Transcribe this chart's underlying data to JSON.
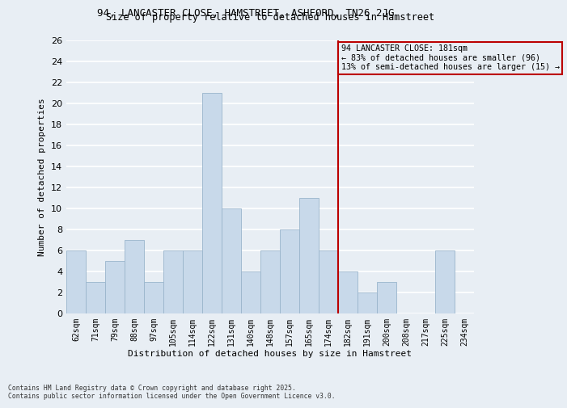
{
  "title_line1": "94, LANCASTER CLOSE, HAMSTREET, ASHFORD, TN26 2JG",
  "title_line2": "Size of property relative to detached houses in Hamstreet",
  "xlabel": "Distribution of detached houses by size in Hamstreet",
  "ylabel": "Number of detached properties",
  "categories": [
    "62sqm",
    "71sqm",
    "79sqm",
    "88sqm",
    "97sqm",
    "105sqm",
    "114sqm",
    "122sqm",
    "131sqm",
    "140sqm",
    "148sqm",
    "157sqm",
    "165sqm",
    "174sqm",
    "182sqm",
    "191sqm",
    "200sqm",
    "208sqm",
    "217sqm",
    "225sqm",
    "234sqm"
  ],
  "values": [
    6,
    3,
    5,
    7,
    3,
    6,
    6,
    21,
    10,
    4,
    6,
    8,
    11,
    6,
    4,
    2,
    3,
    0,
    0,
    6,
    0
  ],
  "bar_color": "#c8d9ea",
  "bar_edge_color": "#9ab5cc",
  "background_color": "#e8eef4",
  "grid_color": "#ffffff",
  "vline_color": "#bb0000",
  "annotation_text": "94 LANCASTER CLOSE: 181sqm\n← 83% of detached houses are smaller (96)\n13% of semi-detached houses are larger (15) →",
  "annotation_box_facecolor": "#e8eef4",
  "annotation_box_edgecolor": "#bb0000",
  "ylim": [
    0,
    26
  ],
  "yticks": [
    0,
    2,
    4,
    6,
    8,
    10,
    12,
    14,
    16,
    18,
    20,
    22,
    24,
    26
  ],
  "footnote1": "Contains HM Land Registry data © Crown copyright and database right 2025.",
  "footnote2": "Contains public sector information licensed under the Open Government Licence v3.0."
}
